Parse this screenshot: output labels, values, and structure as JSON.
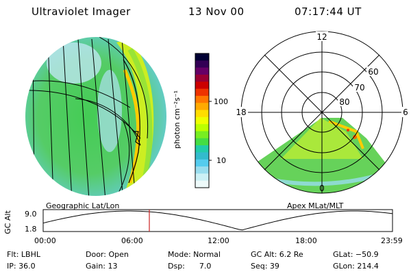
{
  "header": {
    "instrument": "Ultraviolet Imager",
    "date": "13 Nov 00",
    "time": "07:17:44 UT"
  },
  "left_panel": {
    "caption": "Geographic Lat/Lon"
  },
  "colorbar": {
    "unit_label": "photon cm⁻²s⁻¹",
    "ticks": [
      "100",
      "10"
    ],
    "colors": [
      "#000033",
      "#330055",
      "#660066",
      "#990033",
      "#cc0000",
      "#ee3300",
      "#ff7700",
      "#ffaa00",
      "#ffdd00",
      "#eeff00",
      "#bbff00",
      "#77ee22",
      "#44dd44",
      "#22ccaa",
      "#33bbcc",
      "#55ccee",
      "#99ddee",
      "#ccf0f5",
      "#eefafa"
    ]
  },
  "right_panel": {
    "caption": "Apex MLat/MLT",
    "mlt_labels": {
      "top": "12",
      "left": "18",
      "right": "6",
      "bottom": "0"
    },
    "lat_labels": [
      "60",
      "70",
      "80"
    ]
  },
  "altitude_plot": {
    "axis_label": "GC Alt",
    "y_ticks": [
      "9.0",
      "1.8"
    ],
    "x_ticks": [
      "00:00",
      "06:00",
      "12:00",
      "18:00",
      "23:59"
    ],
    "current_time_marker": "07:17:44"
  },
  "footer": {
    "filter": "Flt: LBHL",
    "door": "Door: Open",
    "mode": "Mode: Normal",
    "gc_alt": "GC Alt: 6.2 Re",
    "glat": "GLat: −50.9",
    "ip": "IP: 36.0",
    "gain": "Gain: 13",
    "dsp": "Dsp:      7.0",
    "seq": "Seq: 39",
    "glon": "GLon: 214.4"
  }
}
